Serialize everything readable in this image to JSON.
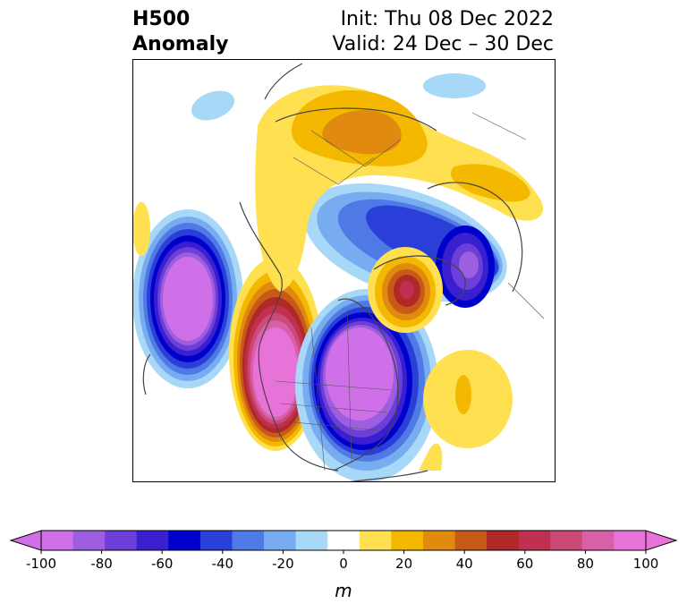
{
  "title": {
    "left_line1": "H500",
    "left_line2": "Anomaly",
    "right_line1": "Init: Thu 08 Dec 2022",
    "right_line2": "Valid: 24 Dec – 30 Dec"
  },
  "colorbar": {
    "unit_label": "m",
    "tick_labels": [
      "-100",
      "-80",
      "-60",
      "-40",
      "-20",
      "0",
      "20",
      "40",
      "60",
      "80",
      "100"
    ],
    "colors": [
      "#d070e8",
      "#9d5ee0",
      "#6b3fd8",
      "#3a1fd0",
      "#0000cc",
      "#2a3fd8",
      "#4f7ae6",
      "#78acf0",
      "#a8d8f8",
      "#ffffff",
      "#ffe050",
      "#f4b800",
      "#e08a10",
      "#c85a18",
      "#b02828",
      "#c03050",
      "#cc4a78",
      "#d860a8",
      "#e873d8"
    ],
    "extend_low_color": "#d070e8",
    "extend_high_color": "#e873d8"
  },
  "map": {
    "projection": "north-polar-stereographic",
    "field": "500 hPa geopotential height anomaly",
    "features": [
      {
        "label": "Gulf of Alaska low",
        "sign": "negative",
        "peak_m": -110
      },
      {
        "label": "Western North America ridge",
        "sign": "positive",
        "peak_m": 95
      },
      {
        "label": "Central and Eastern North America trough",
        "sign": "negative",
        "peak_m": -100
      },
      {
        "label": "Greenland ridge",
        "sign": "positive",
        "peak_m": 65
      },
      {
        "label": "Northern Europe low",
        "sign": "negative",
        "peak_m": -80
      },
      {
        "label": "Siberian ridge",
        "sign": "positive",
        "peak_m": 45
      },
      {
        "label": "North Atlantic ridge",
        "sign": "positive",
        "peak_m": 25
      }
    ]
  }
}
